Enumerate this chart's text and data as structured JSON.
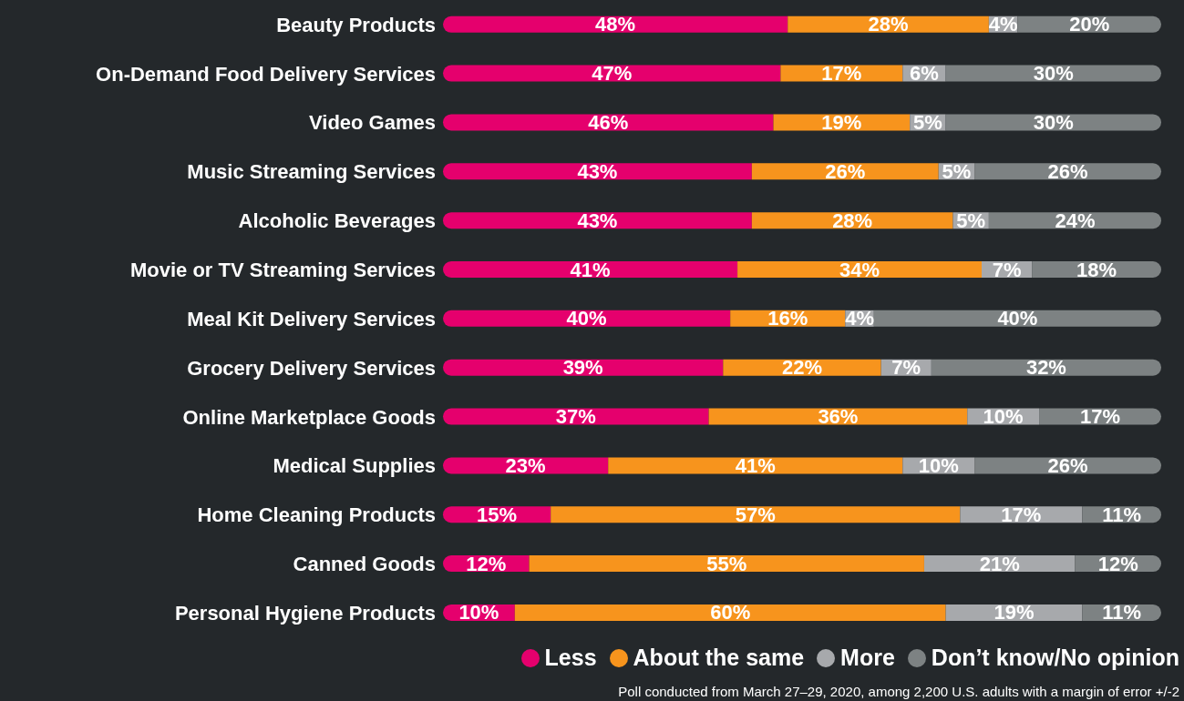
{
  "chart_data": {
    "type": "bar",
    "orientation": "horizontal",
    "stacked": true,
    "tick_labels": "y",
    "legend": "bottom right",
    "categories": [
      "Beauty Products",
      "On-Demand Food Delivery Services",
      "Video Games",
      "Music Streaming Services",
      "Alcoholic Beverages",
      "Movie or TV Streaming Services",
      "Meal Kit Delivery Services",
      "Grocery Delivery Services",
      "Online Marketplace Goods",
      "Medical Supplies",
      "Home Cleaning Products",
      "Canned Goods",
      "Personal Hygiene Products"
    ],
    "series": [
      {
        "name": "Less",
        "color": "#e5006d",
        "values": [
          48,
          47,
          46,
          43,
          43,
          41,
          40,
          39,
          37,
          23,
          15,
          12,
          10
        ],
        "value_labels": [
          "48%",
          "47%",
          "46%",
          "43%",
          "43%",
          "41%",
          "40%",
          "39%",
          "37%",
          "23%",
          "15%",
          "12%",
          "10%"
        ]
      },
      {
        "name": "About the same",
        "color": "#f7941d",
        "values": [
          28,
          17,
          19,
          26,
          28,
          34,
          16,
          22,
          36,
          41,
          57,
          55,
          60
        ],
        "value_labels": [
          "28%",
          "17%",
          "19%",
          "26%",
          "28%",
          "34%",
          "16%",
          "22%",
          "36%",
          "41%",
          "57%",
          "55%",
          "60%"
        ]
      },
      {
        "name": "More",
        "color": "#a7a9ac",
        "values": [
          4,
          6,
          5,
          5,
          5,
          7,
          4,
          7,
          10,
          10,
          17,
          21,
          19
        ],
        "value_labels": [
          "4%",
          "6%",
          "5%",
          "5%",
          "5%",
          "7%",
          "4%",
          "7%",
          "10%",
          "10%",
          "17%",
          "21%",
          "19%"
        ]
      },
      {
        "name": "Don’t know/No opinion",
        "color": "#7d8283",
        "values": [
          20,
          30,
          30,
          26,
          24,
          18,
          40,
          32,
          17,
          26,
          11,
          12,
          11
        ],
        "value_labels": [
          "20%",
          "30%",
          "30%",
          "26%",
          "24%",
          "18%",
          "40%",
          "32%",
          "17%",
          "26%",
          "11%",
          "12%",
          "11%"
        ]
      }
    ],
    "annotations": [
      "Poll conducted from March 27–29, 2020, among 2,200 U.S. adults with a margin of error +/-2"
    ]
  }
}
